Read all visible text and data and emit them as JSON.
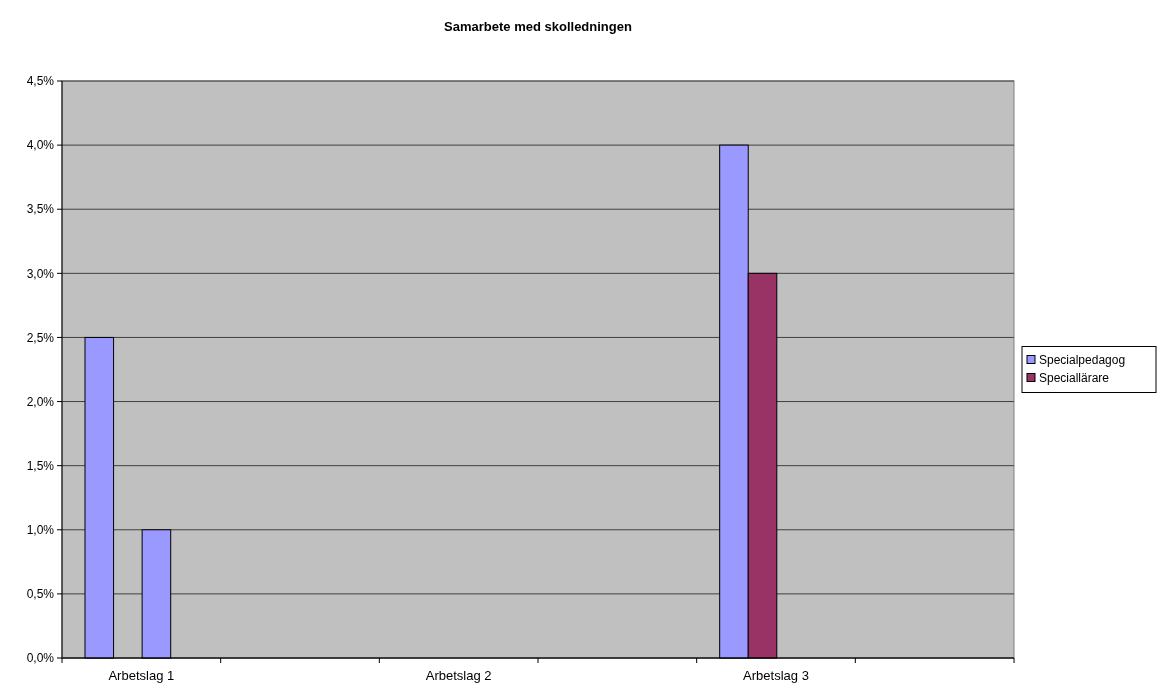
{
  "chart_data": {
    "type": "bar",
    "title": "Samarbete med skolledningen",
    "categories": [
      "Arbetslag 1",
      null,
      "Arbetslag 2",
      null,
      "Arbetslag 3",
      null
    ],
    "series": [
      {
        "name": "Specialpedagog",
        "color": "#9999ff",
        "values": [
          2.5,
          null,
          null,
          null,
          4.0,
          null
        ]
      },
      {
        "name": "Speciallärare",
        "color": "#993366",
        "values": [
          null,
          null,
          null,
          null,
          3.0,
          null
        ]
      },
      {
        "color": "#9999ff",
        "values": [
          1.0,
          null,
          null,
          null,
          null,
          null
        ]
      }
    ],
    "ylim": [
      0,
      4.5
    ],
    "yticks": [
      {
        "value": 0,
        "label": "0,0%"
      },
      {
        "value": 0.5,
        "label": "0,5%"
      },
      {
        "value": 1,
        "label": "1,0%"
      },
      {
        "value": 1.5,
        "label": "1,5%"
      },
      {
        "value": 2,
        "label": "2,0%"
      },
      {
        "value": 2.5,
        "label": "2,5%"
      },
      {
        "value": 3,
        "label": "3,0%"
      },
      {
        "value": 3.5,
        "label": "3,5%"
      },
      {
        "value": 4,
        "label": "4,0%"
      },
      {
        "value": 4.5,
        "label": "4,5%"
      }
    ],
    "grid": "y",
    "legend": "right"
  }
}
